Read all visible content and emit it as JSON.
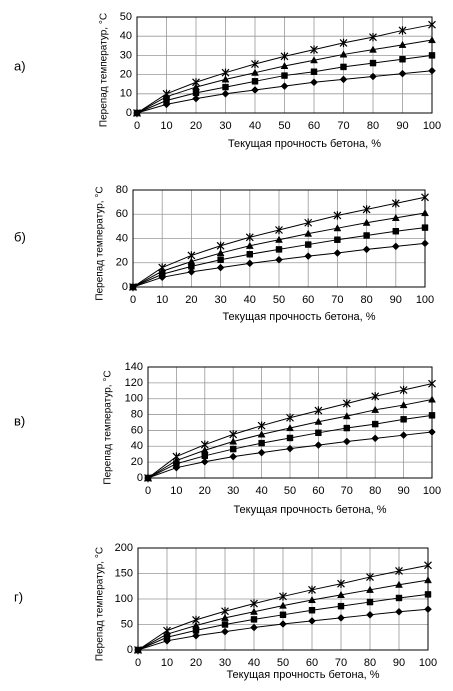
{
  "chart_data": [
    {
      "type": "line",
      "panel": "а)",
      "ylabel": "Перепад температур, °С",
      "xlabel": "Текущая прочность бетона, %",
      "x": [
        0,
        10,
        20,
        30,
        40,
        50,
        60,
        70,
        80,
        90,
        100
      ],
      "xlim": [
        0,
        100
      ],
      "xticks": [
        0,
        10,
        20,
        30,
        40,
        50,
        60,
        70,
        80,
        90,
        100
      ],
      "ylim": [
        0,
        50
      ],
      "yticks": [
        0,
        10,
        20,
        30,
        40,
        50
      ],
      "grid": true,
      "series": [
        {
          "marker": "diamond",
          "color": "#000000",
          "values": [
            0,
            4.5,
            7.5,
            10,
            12,
            14,
            16,
            17.5,
            19,
            20.5,
            22
          ]
        },
        {
          "marker": "square",
          "color": "#000000",
          "values": [
            0,
            6.5,
            10.5,
            13.5,
            16.5,
            19.5,
            21.5,
            24,
            26,
            28,
            30
          ]
        },
        {
          "marker": "triangle",
          "color": "#000000",
          "values": [
            0,
            8.5,
            13.5,
            17.5,
            21,
            24.5,
            27.5,
            30.5,
            33,
            35.5,
            38
          ]
        },
        {
          "marker": "star",
          "color": "#000000",
          "values": [
            0,
            10,
            16,
            21,
            25.5,
            29.5,
            33,
            36.5,
            39.5,
            43,
            46
          ]
        }
      ]
    },
    {
      "type": "line",
      "panel": "б)",
      "ylabel": "Перепад температур, °С",
      "xlabel": "Текущая прочность бетона, %",
      "x": [
        0,
        10,
        20,
        30,
        40,
        50,
        60,
        70,
        80,
        90,
        100
      ],
      "xlim": [
        0,
        100
      ],
      "xticks": [
        0,
        10,
        20,
        30,
        40,
        50,
        60,
        70,
        80,
        90,
        100
      ],
      "ylim": [
        0,
        80
      ],
      "yticks": [
        0,
        20,
        40,
        60,
        80
      ],
      "grid": true,
      "series": [
        {
          "marker": "diamond",
          "color": "#000000",
          "values": [
            0,
            8,
            12.5,
            16,
            19.5,
            22.5,
            25.5,
            28,
            31,
            33.5,
            36
          ]
        },
        {
          "marker": "square",
          "color": "#000000",
          "values": [
            0,
            10.5,
            17,
            22.5,
            27,
            31,
            35,
            39,
            42.5,
            46,
            49
          ]
        },
        {
          "marker": "triangle",
          "color": "#000000",
          "values": [
            0,
            13,
            21,
            28,
            34,
            39,
            44,
            48.5,
            53,
            57,
            61
          ]
        },
        {
          "marker": "star",
          "color": "#000000",
          "values": [
            0,
            16,
            26,
            34,
            41,
            47,
            53,
            59,
            64,
            69,
            74
          ]
        }
      ]
    },
    {
      "type": "line",
      "panel": "в)",
      "ylabel": "Перепад температур, °С",
      "xlabel": "Текущая прочность бетона, %",
      "x": [
        0,
        10,
        20,
        30,
        40,
        50,
        60,
        70,
        80,
        90,
        100
      ],
      "xlim": [
        0,
        100
      ],
      "xticks": [
        0,
        10,
        20,
        30,
        40,
        50,
        60,
        70,
        80,
        90,
        100
      ],
      "ylim": [
        0,
        140
      ],
      "yticks": [
        0,
        20,
        40,
        60,
        80,
        100,
        120,
        140
      ],
      "grid": true,
      "series": [
        {
          "marker": "diamond",
          "color": "#000000",
          "values": [
            0,
            13,
            20.5,
            27,
            32,
            37,
            41.5,
            46,
            50,
            54,
            58
          ]
        },
        {
          "marker": "square",
          "color": "#000000",
          "values": [
            0,
            18,
            28,
            36.5,
            44,
            50.5,
            57,
            63,
            68,
            74,
            79
          ]
        },
        {
          "marker": "triangle",
          "color": "#000000",
          "values": [
            0,
            22,
            35,
            46,
            55,
            63,
            71,
            78,
            86,
            92,
            99
          ]
        },
        {
          "marker": "star",
          "color": "#000000",
          "values": [
            0,
            27,
            42,
            55,
            66,
            76,
            85,
            94,
            103,
            111,
            119
          ]
        }
      ]
    },
    {
      "type": "line",
      "panel": "г)",
      "ylabel": "Перепад температур, °С",
      "xlabel": "Текущая прочность бетона, %",
      "x": [
        0,
        10,
        20,
        30,
        40,
        50,
        60,
        70,
        80,
        90,
        100
      ],
      "xlim": [
        0,
        100
      ],
      "xticks": [
        0,
        10,
        20,
        30,
        40,
        50,
        60,
        70,
        80,
        90,
        100
      ],
      "ylim": [
        0,
        200
      ],
      "yticks": [
        0,
        50,
        100,
        150,
        200
      ],
      "grid": true,
      "series": [
        {
          "marker": "diamond",
          "color": "#000000",
          "values": [
            0,
            18,
            28,
            36,
            44,
            51,
            57,
            63,
            69,
            75,
            80
          ]
        },
        {
          "marker": "square",
          "color": "#000000",
          "values": [
            0,
            25,
            38.5,
            50,
            60,
            69,
            78,
            86,
            94,
            102,
            109
          ]
        },
        {
          "marker": "triangle",
          "color": "#000000",
          "values": [
            0,
            31,
            48,
            63,
            75,
            87,
            98,
            108,
            118,
            128,
            137
          ]
        },
        {
          "marker": "star",
          "color": "#000000",
          "values": [
            0,
            38,
            59,
            76,
            91,
            105,
            118,
            130,
            143,
            155,
            166
          ]
        }
      ]
    }
  ]
}
